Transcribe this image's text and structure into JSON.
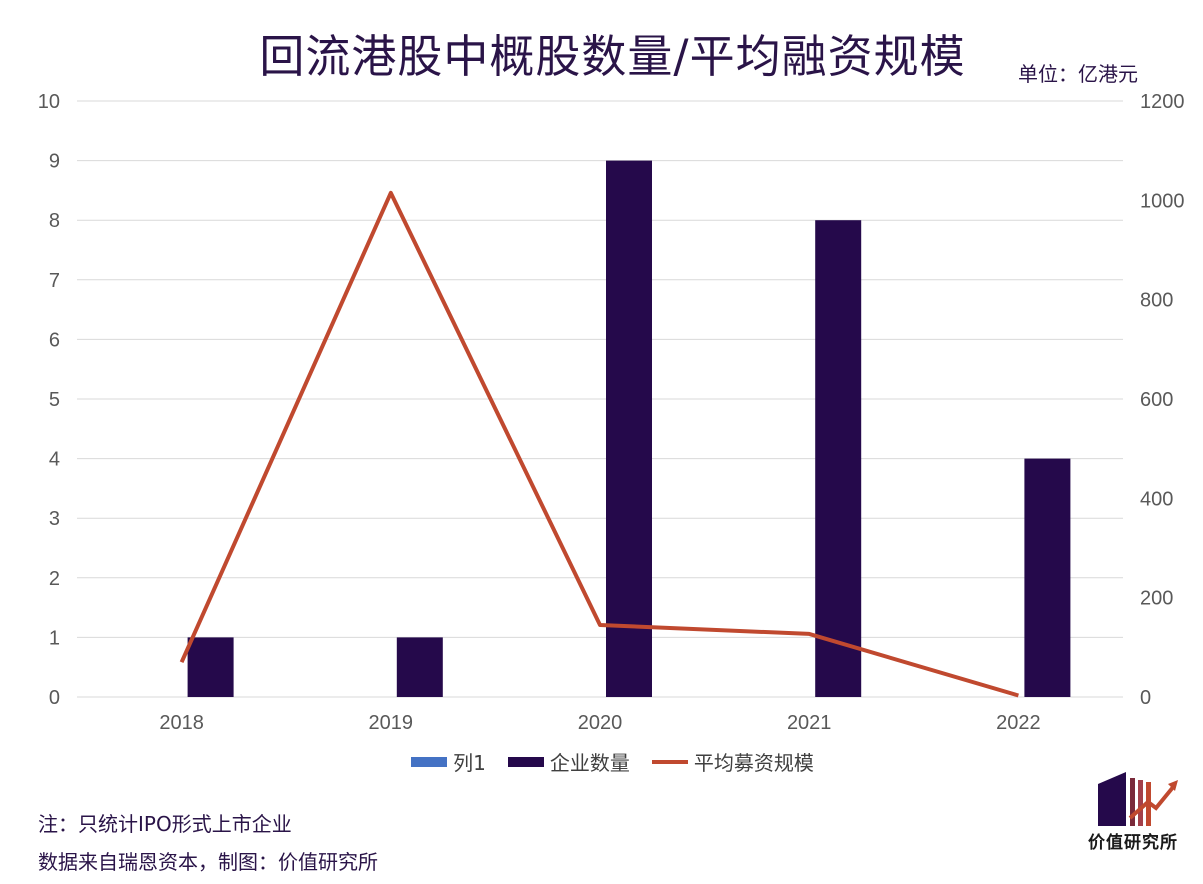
{
  "chart_data": {
    "type": "bar",
    "title": "回流港股中概股数量/平均融资规模",
    "unit_label": "单位：亿港元",
    "categories": [
      "2018",
      "2019",
      "2020",
      "2021",
      "2022"
    ],
    "y_left": {
      "min": 0,
      "max": 10,
      "ticks": [
        "0",
        "1",
        "2",
        "3",
        "4",
        "5",
        "6",
        "7",
        "8",
        "9",
        "10"
      ]
    },
    "y_right": {
      "min": 0,
      "max": 1200,
      "ticks": [
        "0",
        "200",
        "400",
        "600",
        "800",
        "1000",
        "1200"
      ]
    },
    "grid": true,
    "legend_position": "bottom",
    "series": [
      {
        "name": "列1",
        "type": "bar",
        "axis": "left",
        "color": "#4472c4",
        "values": [
          null,
          null,
          null,
          null,
          null
        ]
      },
      {
        "name": "企业数量",
        "type": "bar",
        "axis": "left",
        "color": "#25094b",
        "values": [
          1,
          1,
          9,
          8,
          4
        ]
      },
      {
        "name": "平均募资规模",
        "type": "line",
        "axis": "right",
        "color": "#c0492f",
        "values": [
          70,
          1015,
          145,
          127,
          3
        ]
      }
    ]
  },
  "notes": {
    "line1": "注：只统计IPO形式上市企业",
    "line2": "数据来自瑞恩资本，制图：价值研究所"
  },
  "logo": {
    "text": "价值研究所"
  }
}
